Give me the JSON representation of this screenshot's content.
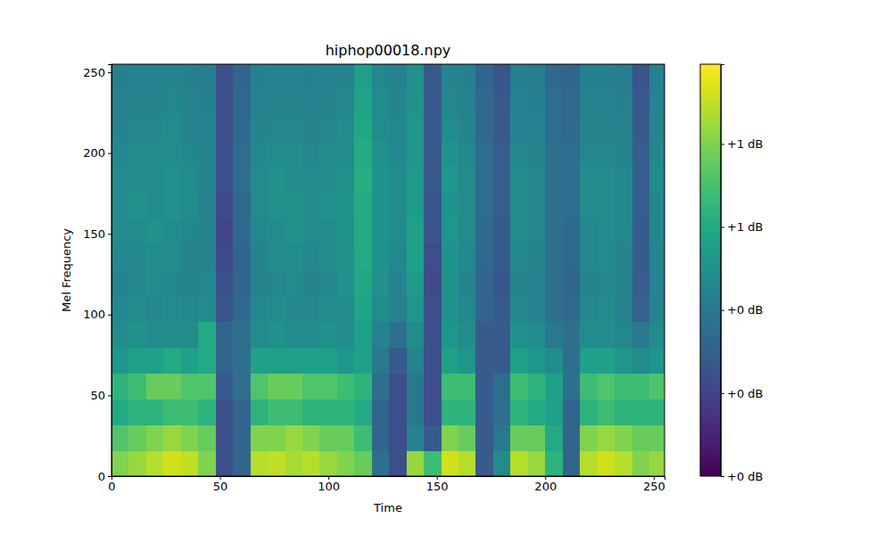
{
  "chart_data": {
    "type": "heatmap",
    "title": "hiphop00018.npy",
    "xlabel": "Time",
    "ylabel": "Mel Frequency",
    "xlim": [
      0,
      255
    ],
    "ylim": [
      0,
      255
    ],
    "xticks": [
      0,
      50,
      100,
      150,
      200,
      250
    ],
    "yticks": [
      0,
      50,
      100,
      150,
      200,
      250
    ],
    "x": [
      0,
      8,
      16,
      24,
      32,
      40,
      48,
      56,
      64,
      72,
      80,
      88,
      96,
      104,
      112,
      120,
      128,
      136,
      144,
      152,
      160,
      168,
      176,
      184,
      192,
      200,
      208,
      216,
      224,
      232,
      240,
      248
    ],
    "y": [
      0,
      16,
      32,
      48,
      64,
      80,
      96,
      112,
      128,
      144,
      160,
      176,
      192,
      208,
      224,
      240
    ],
    "cells": [
      [
        1.0,
        1.05,
        1.1,
        1.15,
        1.12,
        1.0,
        0.3,
        0.4,
        1.1,
        1.12,
        1.08,
        1.1,
        1.05,
        1.0,
        0.95,
        0.45,
        0.3,
        1.05,
        0.85,
        1.15,
        1.1,
        0.35,
        0.6,
        1.1,
        1.05,
        0.8,
        0.4,
        1.1,
        1.15,
        1.1,
        1.0,
        1.05
      ],
      [
        0.9,
        0.95,
        1.0,
        1.05,
        1.0,
        0.95,
        0.3,
        0.4,
        1.0,
        1.0,
        1.05,
        1.0,
        0.95,
        0.95,
        0.85,
        0.4,
        0.3,
        0.55,
        0.35,
        1.0,
        0.95,
        0.35,
        0.5,
        0.95,
        0.95,
        0.75,
        0.4,
        1.0,
        1.05,
        1.0,
        0.95,
        0.95
      ],
      [
        0.75,
        0.8,
        0.8,
        0.85,
        0.85,
        0.8,
        0.3,
        0.4,
        0.8,
        0.85,
        0.85,
        0.8,
        0.8,
        0.8,
        0.75,
        0.4,
        0.3,
        0.5,
        0.3,
        0.8,
        0.8,
        0.35,
        0.45,
        0.8,
        0.75,
        0.7,
        0.4,
        0.8,
        0.85,
        0.8,
        0.8,
        0.8
      ],
      [
        0.8,
        0.85,
        0.95,
        0.95,
        0.9,
        0.9,
        0.35,
        0.45,
        0.9,
        0.95,
        0.95,
        0.9,
        0.9,
        0.85,
        0.8,
        0.45,
        0.3,
        0.5,
        0.3,
        0.85,
        0.85,
        0.35,
        0.45,
        0.85,
        0.8,
        0.7,
        0.45,
        0.85,
        0.9,
        0.85,
        0.85,
        0.9
      ],
      [
        0.65,
        0.7,
        0.7,
        0.75,
        0.7,
        0.75,
        0.4,
        0.45,
        0.7,
        0.7,
        0.7,
        0.7,
        0.7,
        0.65,
        0.7,
        0.5,
        0.35,
        0.55,
        0.3,
        0.7,
        0.65,
        0.35,
        0.35,
        0.7,
        0.65,
        0.6,
        0.45,
        0.7,
        0.7,
        0.65,
        0.6,
        0.65
      ],
      [
        0.6,
        0.62,
        0.6,
        0.6,
        0.6,
        0.75,
        0.4,
        0.45,
        0.6,
        0.62,
        0.6,
        0.6,
        0.62,
        0.6,
        0.7,
        0.55,
        0.45,
        0.6,
        0.3,
        0.65,
        0.6,
        0.35,
        0.35,
        0.62,
        0.6,
        0.5,
        0.45,
        0.6,
        0.6,
        0.58,
        0.5,
        0.6
      ],
      [
        0.58,
        0.6,
        0.58,
        0.6,
        0.58,
        0.6,
        0.32,
        0.42,
        0.58,
        0.6,
        0.58,
        0.58,
        0.6,
        0.6,
        0.72,
        0.6,
        0.55,
        0.65,
        0.3,
        0.62,
        0.58,
        0.4,
        0.35,
        0.58,
        0.55,
        0.45,
        0.42,
        0.58,
        0.6,
        0.55,
        0.38,
        0.56
      ],
      [
        0.56,
        0.58,
        0.6,
        0.58,
        0.56,
        0.58,
        0.3,
        0.4,
        0.56,
        0.58,
        0.6,
        0.56,
        0.58,
        0.62,
        0.74,
        0.62,
        0.56,
        0.68,
        0.28,
        0.62,
        0.56,
        0.4,
        0.33,
        0.56,
        0.55,
        0.45,
        0.4,
        0.56,
        0.58,
        0.56,
        0.36,
        0.55
      ],
      [
        0.58,
        0.58,
        0.6,
        0.6,
        0.56,
        0.56,
        0.28,
        0.4,
        0.56,
        0.6,
        0.6,
        0.58,
        0.6,
        0.62,
        0.75,
        0.63,
        0.58,
        0.7,
        0.3,
        0.64,
        0.58,
        0.42,
        0.35,
        0.58,
        0.56,
        0.46,
        0.42,
        0.58,
        0.6,
        0.56,
        0.35,
        0.56
      ],
      [
        0.6,
        0.6,
        0.62,
        0.6,
        0.58,
        0.55,
        0.26,
        0.42,
        0.58,
        0.6,
        0.62,
        0.6,
        0.6,
        0.63,
        0.76,
        0.64,
        0.6,
        0.7,
        0.32,
        0.65,
        0.6,
        0.42,
        0.35,
        0.6,
        0.58,
        0.46,
        0.42,
        0.58,
        0.6,
        0.58,
        0.35,
        0.58
      ],
      [
        0.6,
        0.62,
        0.6,
        0.62,
        0.6,
        0.55,
        0.28,
        0.42,
        0.6,
        0.62,
        0.62,
        0.6,
        0.62,
        0.64,
        0.76,
        0.64,
        0.6,
        0.68,
        0.32,
        0.64,
        0.6,
        0.44,
        0.36,
        0.6,
        0.58,
        0.45,
        0.44,
        0.6,
        0.6,
        0.58,
        0.36,
        0.58
      ],
      [
        0.6,
        0.6,
        0.6,
        0.62,
        0.6,
        0.56,
        0.3,
        0.44,
        0.6,
        0.62,
        0.6,
        0.6,
        0.6,
        0.62,
        0.78,
        0.64,
        0.6,
        0.68,
        0.34,
        0.65,
        0.6,
        0.44,
        0.36,
        0.6,
        0.58,
        0.45,
        0.44,
        0.6,
        0.6,
        0.58,
        0.36,
        0.6
      ],
      [
        0.58,
        0.6,
        0.6,
        0.6,
        0.58,
        0.55,
        0.3,
        0.44,
        0.58,
        0.6,
        0.6,
        0.58,
        0.6,
        0.6,
        0.76,
        0.62,
        0.58,
        0.66,
        0.34,
        0.62,
        0.58,
        0.44,
        0.36,
        0.58,
        0.56,
        0.45,
        0.44,
        0.58,
        0.58,
        0.56,
        0.36,
        0.58
      ],
      [
        0.56,
        0.58,
        0.58,
        0.6,
        0.56,
        0.55,
        0.3,
        0.42,
        0.56,
        0.58,
        0.58,
        0.56,
        0.58,
        0.6,
        0.74,
        0.6,
        0.58,
        0.66,
        0.34,
        0.6,
        0.56,
        0.42,
        0.34,
        0.56,
        0.55,
        0.44,
        0.42,
        0.56,
        0.56,
        0.55,
        0.34,
        0.56
      ],
      [
        0.55,
        0.56,
        0.56,
        0.58,
        0.55,
        0.54,
        0.3,
        0.42,
        0.55,
        0.56,
        0.56,
        0.55,
        0.56,
        0.58,
        0.72,
        0.6,
        0.56,
        0.64,
        0.34,
        0.58,
        0.55,
        0.42,
        0.34,
        0.55,
        0.54,
        0.44,
        0.42,
        0.55,
        0.55,
        0.54,
        0.34,
        0.55
      ],
      [
        0.54,
        0.55,
        0.55,
        0.56,
        0.54,
        0.52,
        0.3,
        0.4,
        0.54,
        0.55,
        0.55,
        0.54,
        0.55,
        0.56,
        0.7,
        0.58,
        0.55,
        0.62,
        0.34,
        0.56,
        0.54,
        0.4,
        0.32,
        0.54,
        0.52,
        0.42,
        0.4,
        0.54,
        0.54,
        0.52,
        0.32,
        0.54
      ]
    ],
    "colorbar": {
      "range": [
        0,
        1.24
      ],
      "ticks": [
        {
          "value": 0,
          "label": "+0 dB"
        },
        {
          "value": 0.25,
          "label": "+0 dB"
        },
        {
          "value": 0.5,
          "label": "+0 dB"
        },
        {
          "value": 0.75,
          "label": "+1 dB"
        },
        {
          "value": 1.0,
          "label": "+1 dB"
        }
      ]
    }
  }
}
